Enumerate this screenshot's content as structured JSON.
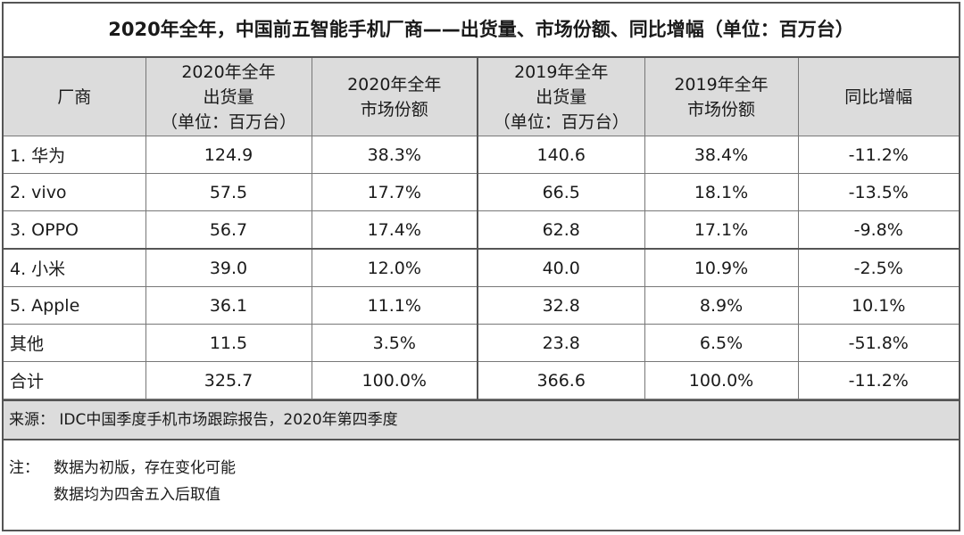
{
  "chart_data": {
    "type": "table",
    "title": "2020年全年，中国前五智能手机厂商——出货量、市场份额、同比增幅（单位：百万台）",
    "columns": [
      [
        "厂商"
      ],
      [
        "2020年全年",
        "出货量",
        "（单位：百万台）"
      ],
      [
        "2020年全年",
        "市场份额"
      ],
      [
        "2019年全年",
        "出货量",
        "（单位：百万台）"
      ],
      [
        "2019年全年",
        "市场份额"
      ],
      [
        "同比增幅"
      ]
    ],
    "rows": [
      {
        "vendor": "1. 华为",
        "ship_2020": "124.9",
        "share_2020": "38.3%",
        "ship_2019": "140.6",
        "share_2019": "38.4%",
        "yoy": "-11.2%"
      },
      {
        "vendor": "2. vivo",
        "ship_2020": "57.5",
        "share_2020": "17.7%",
        "ship_2019": "66.5",
        "share_2019": "18.1%",
        "yoy": "-13.5%"
      },
      {
        "vendor": "3. OPPO",
        "ship_2020": "56.7",
        "share_2020": "17.4%",
        "ship_2019": "62.8",
        "share_2019": "17.1%",
        "yoy": "-9.8%"
      },
      {
        "vendor": "4. 小米",
        "ship_2020": "39.0",
        "share_2020": "12.0%",
        "ship_2019": "40.0",
        "share_2019": "10.9%",
        "yoy": "-2.5%"
      },
      {
        "vendor": "5. Apple",
        "ship_2020": "36.1",
        "share_2020": "11.1%",
        "ship_2019": "32.8",
        "share_2019": "8.9%",
        "yoy": "10.1%"
      },
      {
        "vendor": "其他",
        "ship_2020": "11.5",
        "share_2020": "3.5%",
        "ship_2019": "23.8",
        "share_2019": "6.5%",
        "yoy": "-51.8%"
      },
      {
        "vendor": "合计",
        "ship_2020": "325.7",
        "share_2020": "100.0%",
        "ship_2019": "366.6",
        "share_2019": "100.0%",
        "yoy": "-11.2%"
      }
    ]
  },
  "source": "来源： IDC中国季度手机市场跟踪报告，2020年第四季度",
  "notes": {
    "label": "注：",
    "lines": [
      "数据为初版，存在变化可能",
      "数据均为四舍五入后取值"
    ]
  }
}
